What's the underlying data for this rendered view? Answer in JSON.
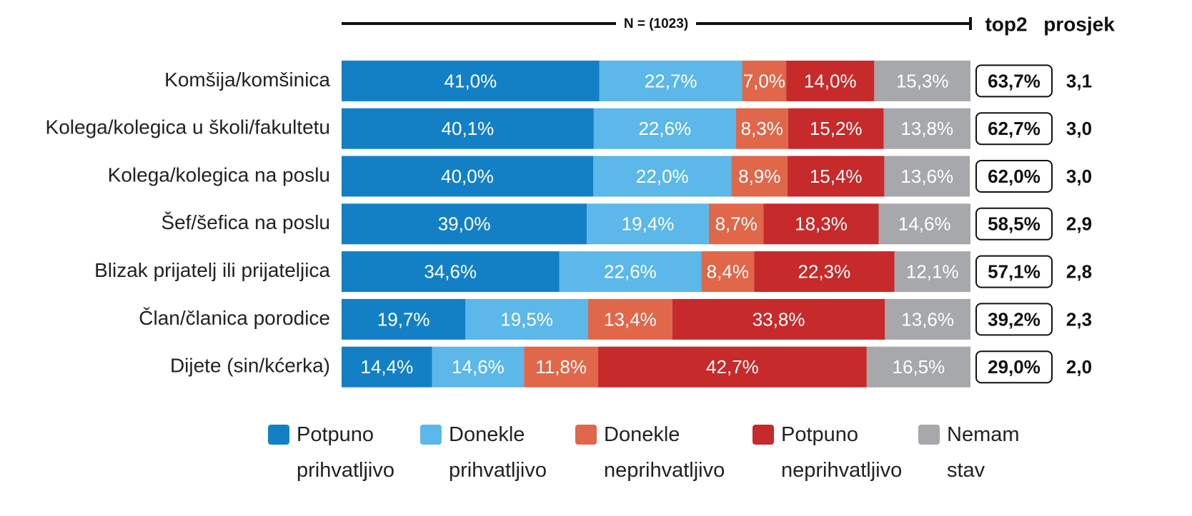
{
  "chart_data": {
    "type": "bar",
    "orientation": "horizontal",
    "stacked": true,
    "annotation": "N = (1023)",
    "categories": [
      "Komšija/komšinica",
      "Kolega/kolegica u školi/fakultetu",
      "Kolega/kolegica na poslu",
      "Šef/šefica na poslu",
      "Blizak prijatelj ili prijateljica",
      "Član/članica porodice",
      "Dijete (sin/kćerka)"
    ],
    "xlim": [
      0,
      100
    ],
    "series": [
      {
        "name": "Potpuno prihvatljivo",
        "color": "#1380c6",
        "values": [
          41.0,
          40.1,
          40.0,
          39.0,
          34.6,
          19.7,
          14.4
        ],
        "value_labels": [
          "41,0%",
          "40,1%",
          "40,0%",
          "39,0%",
          "34,6%",
          "19,7%",
          "14,4%"
        ]
      },
      {
        "name": "Donekle prihvatljivo",
        "color": "#5bb8e8",
        "values": [
          22.7,
          22.6,
          22.0,
          19.4,
          22.6,
          19.5,
          14.6
        ],
        "value_labels": [
          "22,7%",
          "22,6%",
          "22,0%",
          "19,4%",
          "22,6%",
          "19,5%",
          "14,6%"
        ]
      },
      {
        "name": "Donekle neprihvatljivo",
        "color": "#e0674a",
        "values": [
          7.0,
          8.3,
          8.9,
          8.7,
          8.4,
          13.4,
          11.8
        ],
        "value_labels": [
          "7,0%",
          "8,3%",
          "8,9%",
          "8,7%",
          "8,4%",
          "13,4%",
          "11,8%"
        ]
      },
      {
        "name": "Potpuno neprihvatljivo",
        "color": "#c62a2a",
        "values": [
          14.0,
          15.2,
          15.4,
          18.3,
          22.3,
          33.8,
          42.7
        ],
        "value_labels": [
          "14,0%",
          "15,2%",
          "15,4%",
          "18,3%",
          "22,3%",
          "33,8%",
          "42,7%"
        ]
      },
      {
        "name": "Nemam stav",
        "color": "#a7a8ab",
        "values": [
          15.3,
          13.8,
          13.6,
          14.6,
          12.1,
          13.6,
          16.5
        ],
        "value_labels": [
          "15,3%",
          "13,8%",
          "13,6%",
          "14,6%",
          "12,1%",
          "13,6%",
          "16,5%"
        ]
      }
    ],
    "top2": {
      "label": "top2",
      "values": [
        63.7,
        62.7,
        62.0,
        58.5,
        57.1,
        39.2,
        29.0
      ],
      "value_labels": [
        "63,7%",
        "62,7%",
        "62,0%",
        "58,5%",
        "57,1%",
        "39,2%",
        "29,0%"
      ]
    },
    "prosjek": {
      "label": "prosjek",
      "values": [
        3.1,
        3.0,
        3.0,
        2.9,
        2.8,
        2.3,
        2.0
      ],
      "value_labels": [
        "3,1",
        "3,0",
        "3,0",
        "2,9",
        "2,8",
        "2,3",
        "2,0"
      ]
    }
  }
}
